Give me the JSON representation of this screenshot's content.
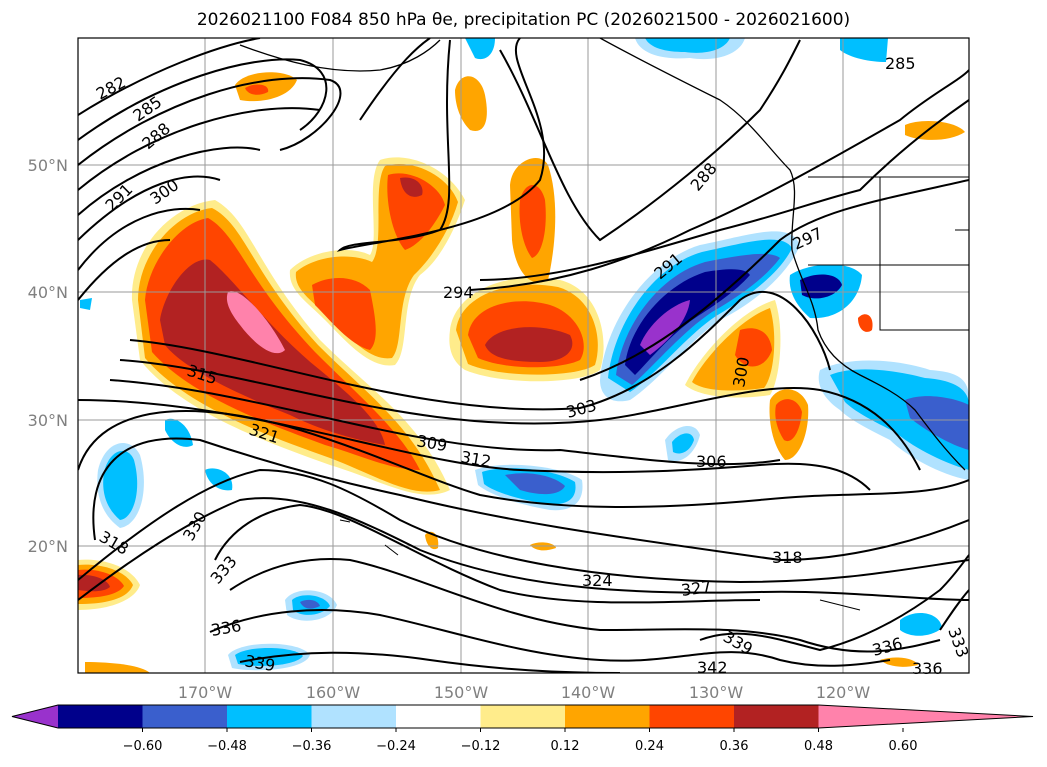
{
  "title": "2026021100 F084 850 hPa θe, precipitation PC (2026021500 - 2026021600)",
  "chart_data": {
    "type": "map",
    "title": "2026021100 F084 850 hPa θe, precipitation PC (2026021500 - 2026021600)",
    "fields": [
      "850 hPa equivalent potential temperature (contours, K)",
      "precipitation PC (shaded)"
    ],
    "lat_ticks": [
      "50°N",
      "40°N",
      "30°N",
      "20°N"
    ],
    "lon_ticks": [
      "170°W",
      "160°W",
      "150°W",
      "140°W",
      "130°W",
      "120°W"
    ],
    "grid": true,
    "colorbar": {
      "placement": "bottom",
      "extend": "both",
      "tick_labels": [
        "−0.60",
        "−0.48",
        "−0.36",
        "−0.24",
        "−0.12",
        "0.12",
        "0.24",
        "0.36",
        "0.48",
        "0.60"
      ],
      "levels": [
        -0.6,
        -0.48,
        -0.36,
        -0.24,
        -0.12,
        0.12,
        0.24,
        0.36,
        0.48,
        0.6
      ],
      "colors": [
        "#9932CC",
        "#00008B",
        "#3A5FCD",
        "#00BFFF",
        "#B0E2FF",
        "#FFFFFF",
        "#FFEC8B",
        "#FFA500",
        "#FF4500",
        "#B22222",
        "#FF82AB"
      ]
    },
    "contour_labels": [
      "282",
      "285",
      "288",
      "291",
      "300",
      "294",
      "288",
      "291",
      "297",
      "285",
      "300",
      "303",
      "306",
      "309",
      "312",
      "315",
      "321",
      "318",
      "330",
      "333",
      "324",
      "327",
      "318",
      "336",
      "339",
      "339",
      "342",
      "336",
      "336",
      "333"
    ]
  }
}
